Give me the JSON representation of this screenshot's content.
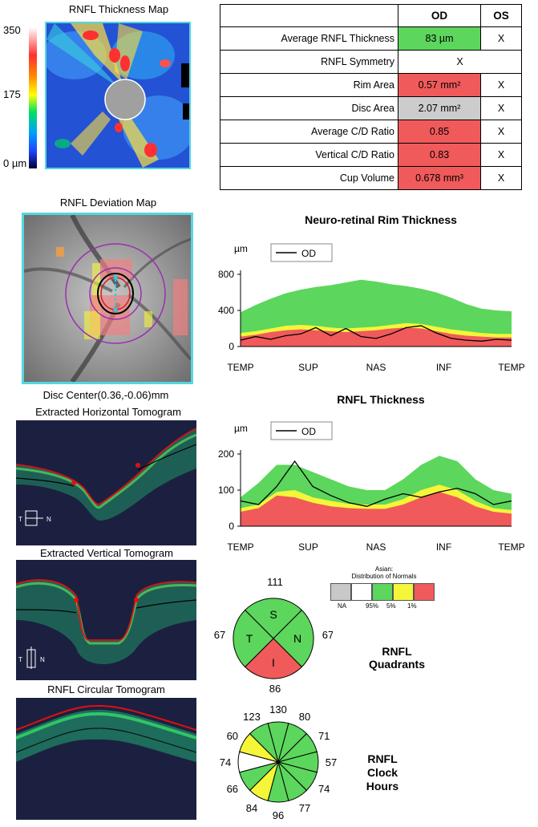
{
  "thickness_map": {
    "title": "RNFL Thickness Map",
    "scale_max": "350",
    "scale_mid": "175",
    "scale_min": "0 µm"
  },
  "metrics_table": {
    "col_od": "OD",
    "col_os": "OS",
    "rows": [
      {
        "label": "Average RNFL Thickness",
        "od": "83 µm",
        "os": "X",
        "status": "normal",
        "color": "#5cd65c"
      },
      {
        "label": "RNFL Symmetry",
        "od": "X",
        "os": "",
        "status": "none",
        "color": "#ffffff"
      },
      {
        "label": "Rim Area",
        "od": "0.57 mm²",
        "os": "X",
        "status": "abnormal",
        "color": "#f05a5a"
      },
      {
        "label": "Disc Area",
        "od": "2.07 mm²",
        "os": "X",
        "status": "na",
        "color": "#cccccc"
      },
      {
        "label": "Average C/D Ratio",
        "od": "0.85",
        "os": "X",
        "status": "abnormal",
        "color": "#f05a5a"
      },
      {
        "label": "Vertical C/D Ratio",
        "od": "0.83",
        "os": "X",
        "status": "abnormal",
        "color": "#f05a5a"
      },
      {
        "label": "Cup Volume",
        "od": "0.678 mm³",
        "os": "X",
        "status": "abnormal",
        "color": "#f05a5a"
      }
    ]
  },
  "deviation_map": {
    "title": "RNFL Deviation Map",
    "disc_center": "Disc Center(0.36,-0.06)mm"
  },
  "tomograms": {
    "horizontal_title": "Extracted Horizontal Tomogram",
    "vertical_title": "Extracted Vertical Tomogram",
    "circular_title": "RNFL Circular Tomogram",
    "horizontal_orient_left": "T",
    "horizontal_orient_right": "N",
    "vertical_orient_left": "T",
    "vertical_orient_right": "N"
  },
  "colors": {
    "normal_green": "#5cd65c",
    "borderline_yellow": "#f5f53a",
    "abnormal_red": "#f05a5a",
    "na_gray": "#c8c8c8",
    "od_line": "#000000",
    "frame_cyan": "#54d6e0"
  },
  "chart_data": [
    {
      "type": "area",
      "title": "Neuro-retinal Rim Thickness",
      "ylabel": "µm",
      "ylim": [
        0,
        800
      ],
      "yticks": [
        "800",
        "400",
        "0"
      ],
      "xticks": [
        "TEMP",
        "SUP",
        "NAS",
        "INF",
        "TEMP"
      ],
      "legend": "OD",
      "legend_position": "top-left",
      "bands": {
        "green_top": [
          380,
          460,
          530,
          590,
          630,
          660,
          680,
          710,
          740,
          720,
          690,
          670,
          640,
          600,
          540,
          470,
          420,
          400,
          390
        ],
        "yellow_top": [
          150,
          170,
          200,
          230,
          240,
          230,
          210,
          200,
          210,
          220,
          240,
          260,
          250,
          220,
          190,
          170,
          150,
          140,
          140
        ],
        "red_top": [
          110,
          130,
          160,
          180,
          190,
          180,
          170,
          160,
          170,
          180,
          200,
          210,
          200,
          170,
          140,
          120,
          110,
          100,
          100
        ]
      },
      "series": [
        {
          "name": "OD",
          "values": [
            70,
            110,
            80,
            120,
            140,
            210,
            120,
            200,
            110,
            90,
            140,
            210,
            230,
            150,
            90,
            70,
            60,
            80,
            70
          ]
        }
      ]
    },
    {
      "type": "area",
      "title": "RNFL Thickness",
      "ylabel": "µm",
      "ylim": [
        0,
        200
      ],
      "yticks": [
        "200",
        "100",
        "0"
      ],
      "xticks": [
        "TEMP",
        "SUP",
        "NAS",
        "INF",
        "TEMP"
      ],
      "legend": "OD",
      "legend_position": "top-left",
      "bands": {
        "green_top": [
          80,
          120,
          170,
          170,
          150,
          130,
          110,
          100,
          100,
          130,
          170,
          195,
          180,
          130,
          100,
          90
        ],
        "yellow_top": [
          50,
          60,
          95,
          100,
          80,
          70,
          62,
          60,
          60,
          75,
          100,
          115,
          100,
          70,
          50,
          45
        ],
        "red_top": [
          40,
          50,
          85,
          80,
          65,
          55,
          50,
          48,
          48,
          60,
          80,
          95,
          80,
          55,
          40,
          35
        ]
      },
      "series": [
        {
          "name": "OD",
          "values": [
            70,
            60,
            110,
            180,
            110,
            85,
            65,
            55,
            75,
            90,
            80,
            95,
            105,
            90,
            60,
            70
          ]
        }
      ]
    },
    {
      "type": "pie",
      "title": "RNFL Quadrants",
      "categories": [
        "S",
        "N",
        "I",
        "T"
      ],
      "values": [
        111,
        67,
        86,
        67
      ],
      "status": [
        "normal",
        "normal",
        "abnormal",
        "normal"
      ]
    },
    {
      "type": "pie",
      "title": "RNFL Clock Hours",
      "categories": [
        "12",
        "1",
        "2",
        "3",
        "4",
        "5",
        "6",
        "7",
        "8",
        "9",
        "10",
        "11"
      ],
      "values": [
        130,
        80,
        71,
        57,
        74,
        77,
        96,
        84,
        66,
        74,
        60,
        123
      ],
      "status": [
        "normal",
        "normal",
        "normal",
        "normal",
        "normal",
        "normal",
        "normal",
        "borderline",
        "normal",
        "none",
        "borderline",
        "normal"
      ]
    }
  ],
  "legend_normals": {
    "header_line1": "Asian:",
    "header_line2": "Distribution of Normals",
    "labels": [
      "NA",
      "95%",
      "5%",
      "1%"
    ]
  },
  "quadrants_label_line1": "RNFL",
  "quadrants_label_line2": "Quadrants",
  "clock_label_line1": "RNFL",
  "clock_label_line2": "Clock",
  "clock_label_line3": "Hours"
}
